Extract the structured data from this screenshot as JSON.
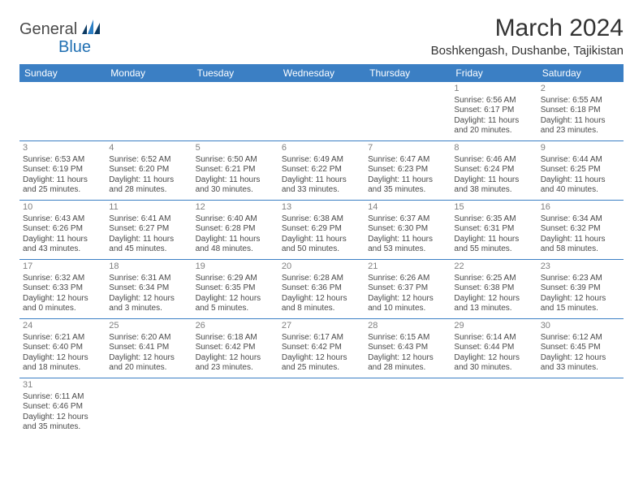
{
  "brand": {
    "general": "General",
    "blue": "Blue"
  },
  "title": "March 2024",
  "location": "Boshkengash, Dushanbe, Tajikistan",
  "colors": {
    "header_bg": "#3b7fc4",
    "header_text": "#ffffff",
    "row_border": "#3b7fc4",
    "day_number": "#808080",
    "body_text": "#4a4a4a",
    "logo_blue": "#1f6fb2"
  },
  "day_names": [
    "Sunday",
    "Monday",
    "Tuesday",
    "Wednesday",
    "Thursday",
    "Friday",
    "Saturday"
  ],
  "weeks": [
    [
      {
        "empty": true
      },
      {
        "empty": true
      },
      {
        "empty": true
      },
      {
        "empty": true
      },
      {
        "empty": true
      },
      {
        "n": "1",
        "sr": "Sunrise: 6:56 AM",
        "ss": "Sunset: 6:17 PM",
        "d1": "Daylight: 11 hours",
        "d2": "and 20 minutes."
      },
      {
        "n": "2",
        "sr": "Sunrise: 6:55 AM",
        "ss": "Sunset: 6:18 PM",
        "d1": "Daylight: 11 hours",
        "d2": "and 23 minutes."
      }
    ],
    [
      {
        "n": "3",
        "sr": "Sunrise: 6:53 AM",
        "ss": "Sunset: 6:19 PM",
        "d1": "Daylight: 11 hours",
        "d2": "and 25 minutes."
      },
      {
        "n": "4",
        "sr": "Sunrise: 6:52 AM",
        "ss": "Sunset: 6:20 PM",
        "d1": "Daylight: 11 hours",
        "d2": "and 28 minutes."
      },
      {
        "n": "5",
        "sr": "Sunrise: 6:50 AM",
        "ss": "Sunset: 6:21 PM",
        "d1": "Daylight: 11 hours",
        "d2": "and 30 minutes."
      },
      {
        "n": "6",
        "sr": "Sunrise: 6:49 AM",
        "ss": "Sunset: 6:22 PM",
        "d1": "Daylight: 11 hours",
        "d2": "and 33 minutes."
      },
      {
        "n": "7",
        "sr": "Sunrise: 6:47 AM",
        "ss": "Sunset: 6:23 PM",
        "d1": "Daylight: 11 hours",
        "d2": "and 35 minutes."
      },
      {
        "n": "8",
        "sr": "Sunrise: 6:46 AM",
        "ss": "Sunset: 6:24 PM",
        "d1": "Daylight: 11 hours",
        "d2": "and 38 minutes."
      },
      {
        "n": "9",
        "sr": "Sunrise: 6:44 AM",
        "ss": "Sunset: 6:25 PM",
        "d1": "Daylight: 11 hours",
        "d2": "and 40 minutes."
      }
    ],
    [
      {
        "n": "10",
        "sr": "Sunrise: 6:43 AM",
        "ss": "Sunset: 6:26 PM",
        "d1": "Daylight: 11 hours",
        "d2": "and 43 minutes."
      },
      {
        "n": "11",
        "sr": "Sunrise: 6:41 AM",
        "ss": "Sunset: 6:27 PM",
        "d1": "Daylight: 11 hours",
        "d2": "and 45 minutes."
      },
      {
        "n": "12",
        "sr": "Sunrise: 6:40 AM",
        "ss": "Sunset: 6:28 PM",
        "d1": "Daylight: 11 hours",
        "d2": "and 48 minutes."
      },
      {
        "n": "13",
        "sr": "Sunrise: 6:38 AM",
        "ss": "Sunset: 6:29 PM",
        "d1": "Daylight: 11 hours",
        "d2": "and 50 minutes."
      },
      {
        "n": "14",
        "sr": "Sunrise: 6:37 AM",
        "ss": "Sunset: 6:30 PM",
        "d1": "Daylight: 11 hours",
        "d2": "and 53 minutes."
      },
      {
        "n": "15",
        "sr": "Sunrise: 6:35 AM",
        "ss": "Sunset: 6:31 PM",
        "d1": "Daylight: 11 hours",
        "d2": "and 55 minutes."
      },
      {
        "n": "16",
        "sr": "Sunrise: 6:34 AM",
        "ss": "Sunset: 6:32 PM",
        "d1": "Daylight: 11 hours",
        "d2": "and 58 minutes."
      }
    ],
    [
      {
        "n": "17",
        "sr": "Sunrise: 6:32 AM",
        "ss": "Sunset: 6:33 PM",
        "d1": "Daylight: 12 hours",
        "d2": "and 0 minutes."
      },
      {
        "n": "18",
        "sr": "Sunrise: 6:31 AM",
        "ss": "Sunset: 6:34 PM",
        "d1": "Daylight: 12 hours",
        "d2": "and 3 minutes."
      },
      {
        "n": "19",
        "sr": "Sunrise: 6:29 AM",
        "ss": "Sunset: 6:35 PM",
        "d1": "Daylight: 12 hours",
        "d2": "and 5 minutes."
      },
      {
        "n": "20",
        "sr": "Sunrise: 6:28 AM",
        "ss": "Sunset: 6:36 PM",
        "d1": "Daylight: 12 hours",
        "d2": "and 8 minutes."
      },
      {
        "n": "21",
        "sr": "Sunrise: 6:26 AM",
        "ss": "Sunset: 6:37 PM",
        "d1": "Daylight: 12 hours",
        "d2": "and 10 minutes."
      },
      {
        "n": "22",
        "sr": "Sunrise: 6:25 AM",
        "ss": "Sunset: 6:38 PM",
        "d1": "Daylight: 12 hours",
        "d2": "and 13 minutes."
      },
      {
        "n": "23",
        "sr": "Sunrise: 6:23 AM",
        "ss": "Sunset: 6:39 PM",
        "d1": "Daylight: 12 hours",
        "d2": "and 15 minutes."
      }
    ],
    [
      {
        "n": "24",
        "sr": "Sunrise: 6:21 AM",
        "ss": "Sunset: 6:40 PM",
        "d1": "Daylight: 12 hours",
        "d2": "and 18 minutes."
      },
      {
        "n": "25",
        "sr": "Sunrise: 6:20 AM",
        "ss": "Sunset: 6:41 PM",
        "d1": "Daylight: 12 hours",
        "d2": "and 20 minutes."
      },
      {
        "n": "26",
        "sr": "Sunrise: 6:18 AM",
        "ss": "Sunset: 6:42 PM",
        "d1": "Daylight: 12 hours",
        "d2": "and 23 minutes."
      },
      {
        "n": "27",
        "sr": "Sunrise: 6:17 AM",
        "ss": "Sunset: 6:42 PM",
        "d1": "Daylight: 12 hours",
        "d2": "and 25 minutes."
      },
      {
        "n": "28",
        "sr": "Sunrise: 6:15 AM",
        "ss": "Sunset: 6:43 PM",
        "d1": "Daylight: 12 hours",
        "d2": "and 28 minutes."
      },
      {
        "n": "29",
        "sr": "Sunrise: 6:14 AM",
        "ss": "Sunset: 6:44 PM",
        "d1": "Daylight: 12 hours",
        "d2": "and 30 minutes."
      },
      {
        "n": "30",
        "sr": "Sunrise: 6:12 AM",
        "ss": "Sunset: 6:45 PM",
        "d1": "Daylight: 12 hours",
        "d2": "and 33 minutes."
      }
    ],
    [
      {
        "n": "31",
        "sr": "Sunrise: 6:11 AM",
        "ss": "Sunset: 6:46 PM",
        "d1": "Daylight: 12 hours",
        "d2": "and 35 minutes."
      },
      {
        "empty": true
      },
      {
        "empty": true
      },
      {
        "empty": true
      },
      {
        "empty": true
      },
      {
        "empty": true
      },
      {
        "empty": true
      }
    ]
  ]
}
